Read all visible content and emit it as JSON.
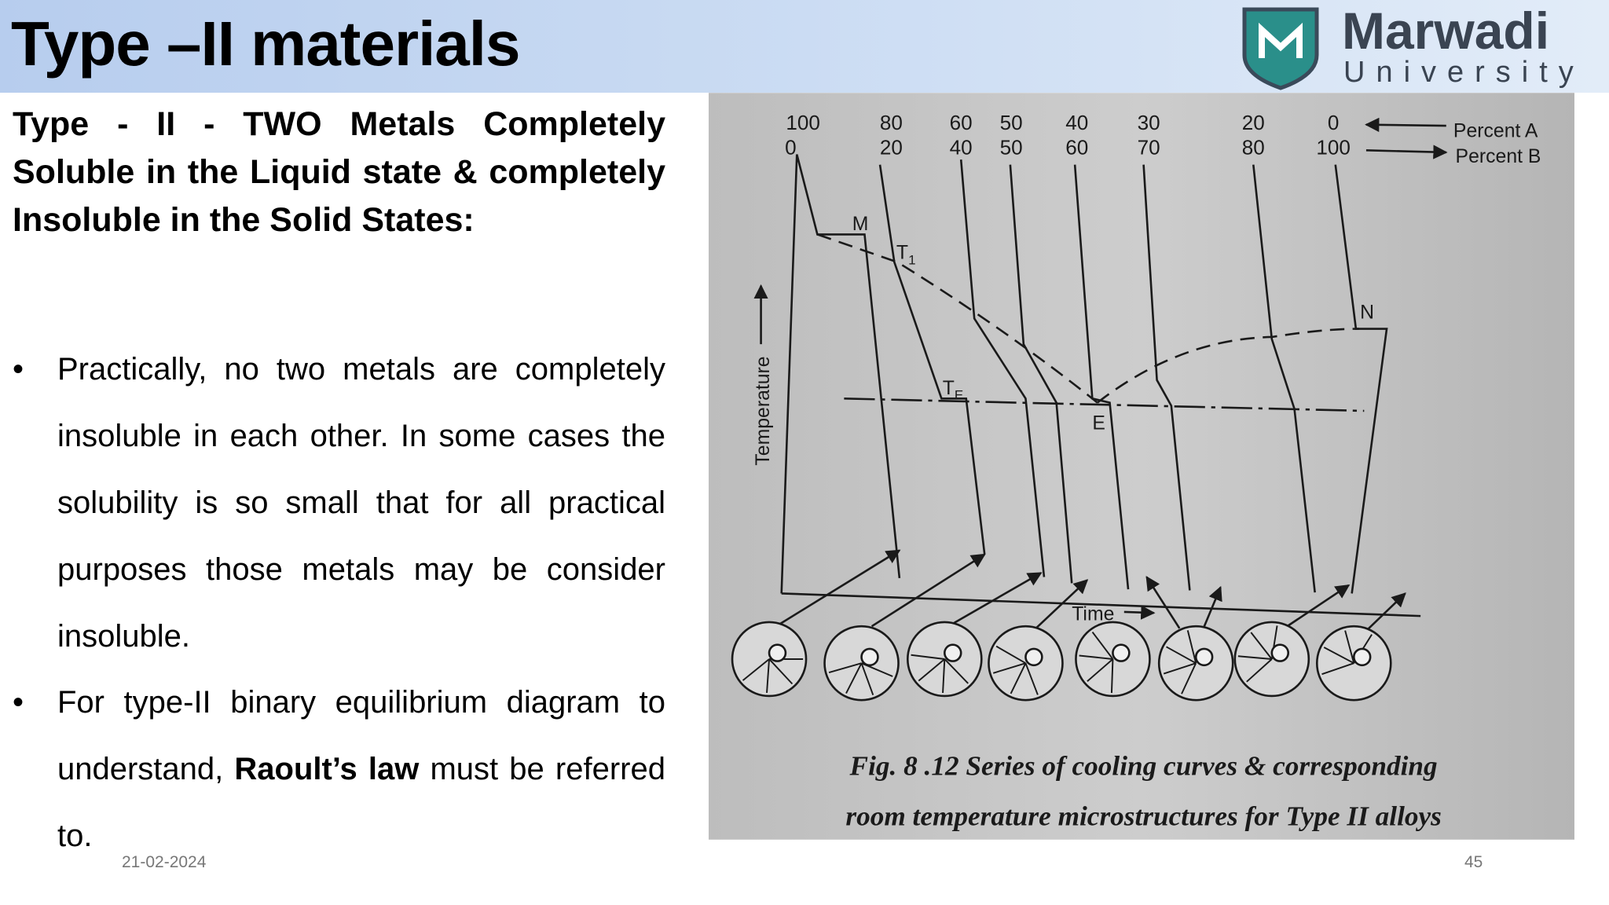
{
  "header": {
    "title": "Type –II materials",
    "logo": {
      "name": "Marwadi",
      "subtitle": "University"
    }
  },
  "heading": "Type - II - TWO Metals Completely Soluble in the Liquid state & completely Insoluble in the Solid States:",
  "bullets": [
    {
      "text": "Practically, no two metals are completely insoluble in each other. In some cases the solubility is so small that for all practical purposes those metals may be consider insoluble."
    },
    {
      "before": "For type-II binary equilibrium diagram to understand, ",
      "bold": "Raoult’s law",
      "after": " must be referred to."
    }
  ],
  "figure": {
    "compositions": [
      {
        "a": "100",
        "b": "0"
      },
      {
        "a": "80",
        "b": "20"
      },
      {
        "a": "60",
        "b": "40"
      },
      {
        "a": "50",
        "b": "50"
      },
      {
        "a": "40",
        "b": "60"
      },
      {
        "a": "30",
        "b": "70"
      },
      {
        "a": "20",
        "b": "80"
      },
      {
        "a": "0",
        "b": "100"
      }
    ],
    "legend": [
      "Percent A",
      "Percent B"
    ],
    "points": {
      "m": "M",
      "t1": {
        "main": "T",
        "sub": "1"
      },
      "te": {
        "main": "T",
        "sub": "E"
      },
      "e": "E",
      "n": "N"
    },
    "axes": {
      "y": "Temperature",
      "x": "Time"
    },
    "caption": [
      "Fig. 8 .12 Series of cooling curves & corresponding",
      "room temperature microstructures for Type II alloys"
    ]
  },
  "footer": {
    "date": "21-02-2024",
    "page": "45"
  }
}
